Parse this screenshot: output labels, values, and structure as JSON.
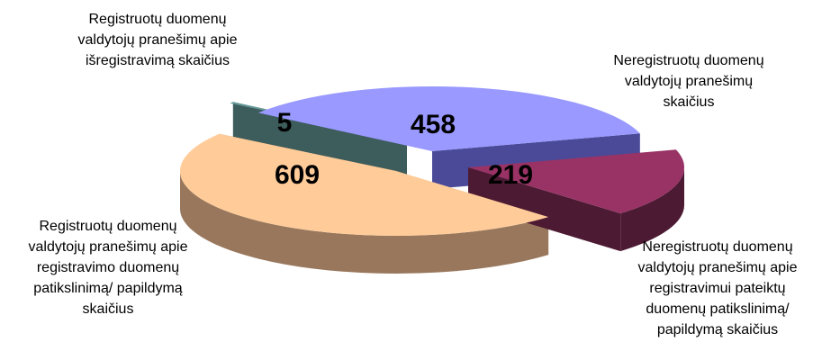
{
  "chart_data": {
    "type": "pie",
    "title": "",
    "categories": [
      "Registruotų duomenų valdytojų pranešimų apie išregistravimą skaičius",
      "Neregistruotų duomenų valdytojų pranešimų skaičius",
      "Neregistruotų duomenų valdytojų pranešimų apie registravimui pateiktų duomenų patikslinimą/ papildymą skaičius",
      "Registruotų duomenų valdytojų pranešimų apie registravimo duomenų patikslinimą/ papildymą skaičius"
    ],
    "values": [
      5,
      458,
      219,
      609
    ],
    "colors": [
      "#669999",
      "#9999ff",
      "#993366",
      "#ffcc99"
    ],
    "side_colors": [
      "#3d5c5c",
      "#4a4a99",
      "#4d1a33",
      "#99775c"
    ],
    "style": "3d-exploded",
    "legend": "none",
    "labels": [
      {
        "lines": [
          "Registruotų duomenų",
          "valdytojų pranešimų apie",
          "išregistravimą skaičius"
        ],
        "value_text": "5"
      },
      {
        "lines": [
          "Neregistruotų duomenų",
          "valdytojų pranešimų",
          "skaičius"
        ],
        "value_text": "458"
      },
      {
        "lines": [
          "Neregistruotų duomenų",
          "valdytojų pranešimų apie",
          "registravimui pateiktų",
          "duomenų patikslinimą/",
          "papildymą skaičius"
        ],
        "value_text": "219"
      },
      {
        "lines": [
          "Registruotų duomenų",
          "valdytojų pranešimų apie",
          "registravimo duomenų",
          "patikslinimą/ papildymą",
          "skaičius"
        ],
        "value_text": "609"
      }
    ]
  }
}
